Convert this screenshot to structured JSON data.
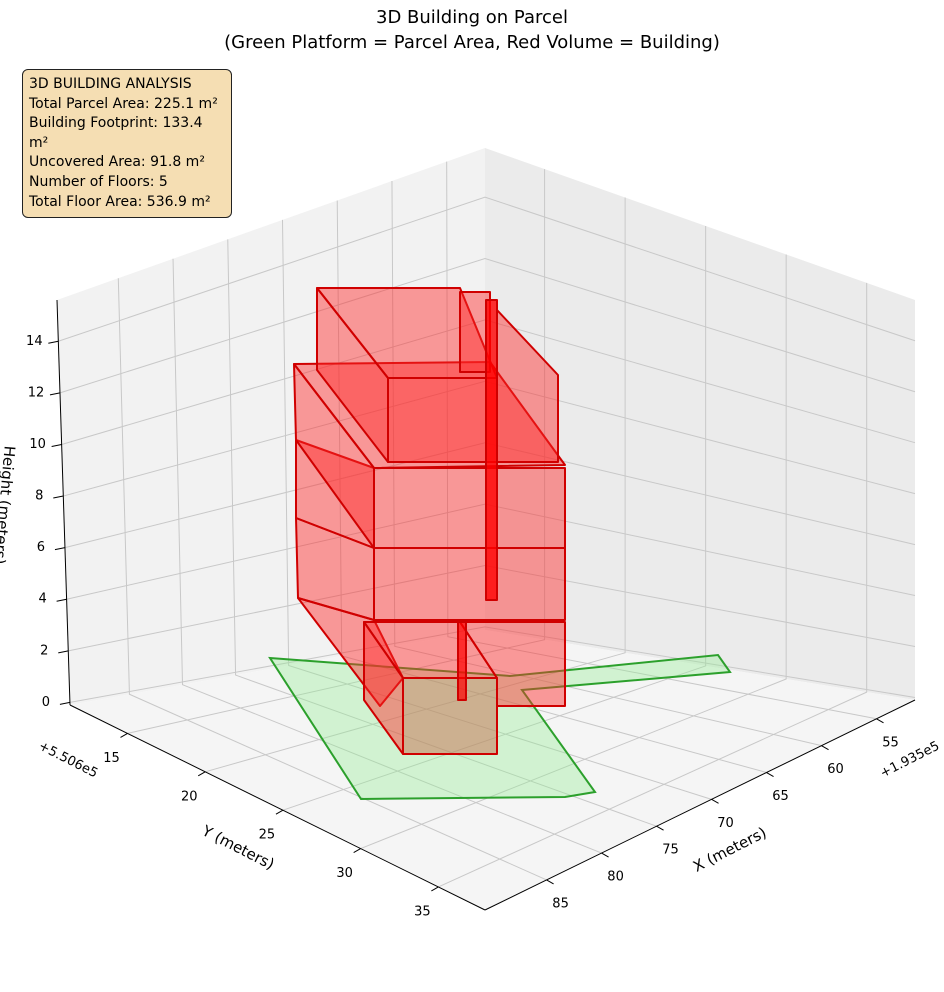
{
  "chart_data": {
    "type": "bar3d",
    "title": "3D Building on Parcel",
    "subtitle": "(Green Platform = Parcel Area, Red Volume = Building)",
    "x_label": "X (meters)",
    "y_label": "Y (meters)",
    "z_label": "Height (meters)",
    "x_offset_label": "+1.935e5",
    "y_offset_label": "+5.506e5",
    "xlim": [
      51.5,
      90.6
    ],
    "ylim": [
      11.3,
      38.0
    ],
    "zlim": [
      -0.1,
      15.6
    ],
    "xticks": [
      55,
      60,
      65,
      70,
      75,
      80,
      85
    ],
    "yticks": [
      15,
      20,
      25,
      30,
      35
    ],
    "zticks": [
      0,
      2,
      4,
      6,
      8,
      10,
      12,
      14
    ],
    "grid": true,
    "info_box": [
      "3D BUILDING ANALYSIS",
      "Total Parcel Area: 225.1 m²",
      "Building Footprint: 133.4 m²",
      "Uncovered Area: 91.8 m²",
      "Number of Floors: 5",
      "Total Floor Area: 536.9 m²"
    ]
  }
}
